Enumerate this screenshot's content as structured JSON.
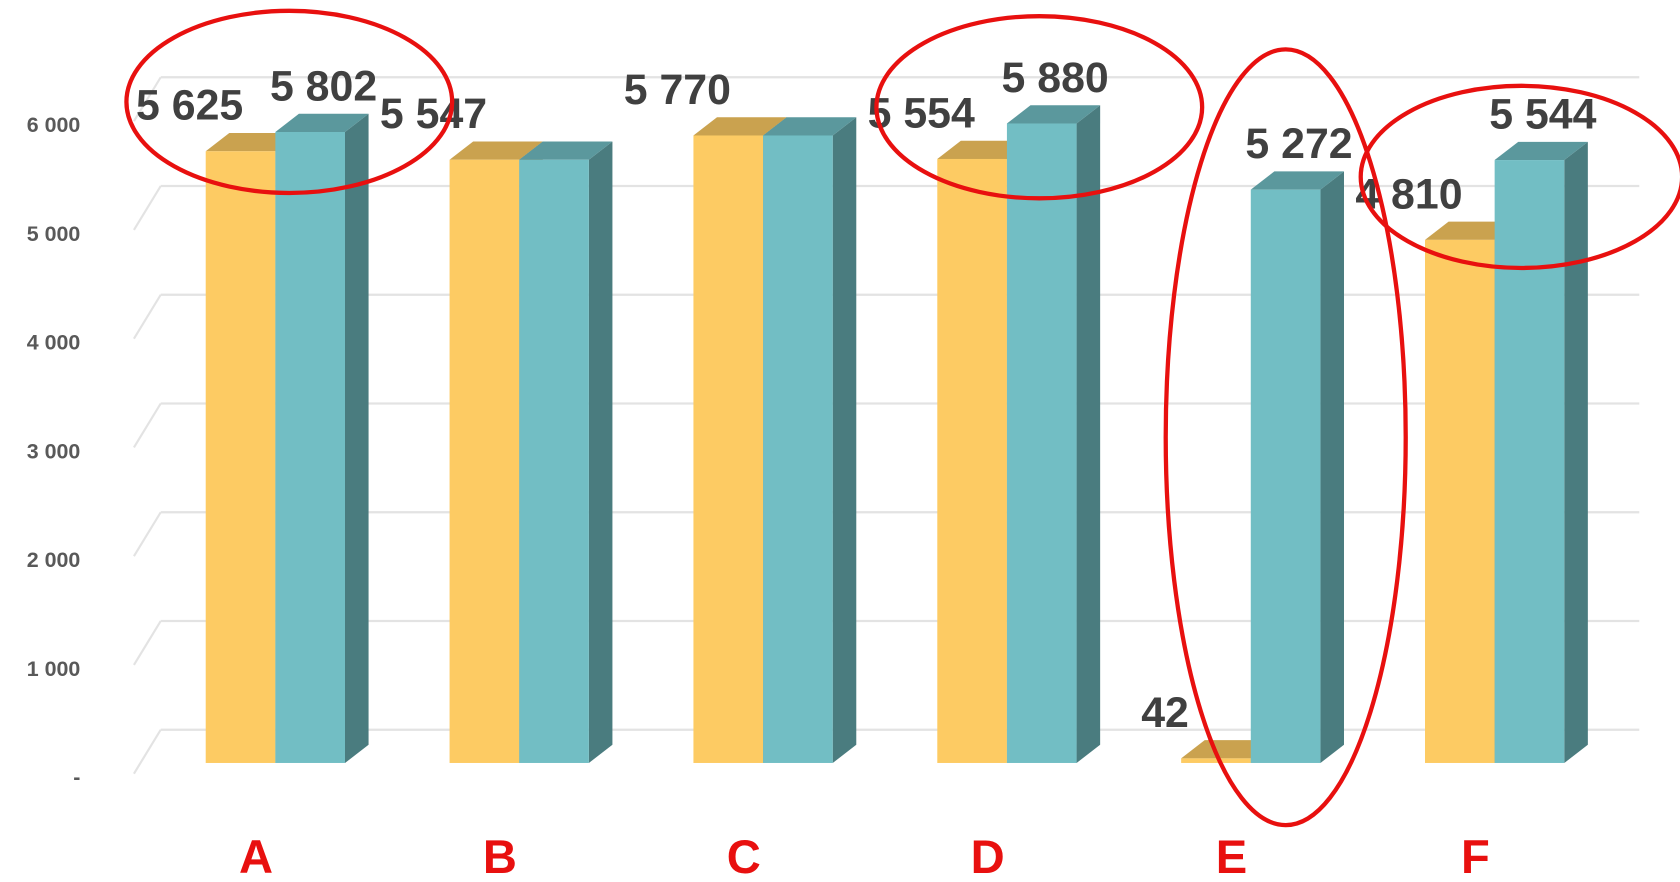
{
  "chart_data": {
    "type": "bar3d",
    "categories": [
      "A",
      "B",
      "C",
      "D",
      "E",
      "F"
    ],
    "series": [
      {
        "color": "#fdcb63",
        "values": [
          5625,
          5547,
          5770,
          5554,
          42,
          4810
        ],
        "value_labels": [
          "5 625",
          "5 547",
          "5 770",
          "5 554",
          "42",
          "4 810"
        ]
      },
      {
        "color": "#72bec4",
        "values": [
          5802,
          5547,
          5770,
          5880,
          5272,
          5544
        ],
        "value_labels": [
          "5 802",
          null,
          null,
          "5 880",
          "5 272",
          "5 544"
        ]
      }
    ],
    "ylim": [
      0,
      6000
    ],
    "yticks": [
      {
        "value": 0,
        "label": "-"
      },
      {
        "value": 1000,
        "label": "1 000"
      },
      {
        "value": 2000,
        "label": "2 000"
      },
      {
        "value": 3000,
        "label": "3 000"
      },
      {
        "value": 4000,
        "label": "4 000"
      },
      {
        "value": 5000,
        "label": "5 000"
      },
      {
        "value": 6000,
        "label": "6 000"
      }
    ],
    "grid": true
  }
}
